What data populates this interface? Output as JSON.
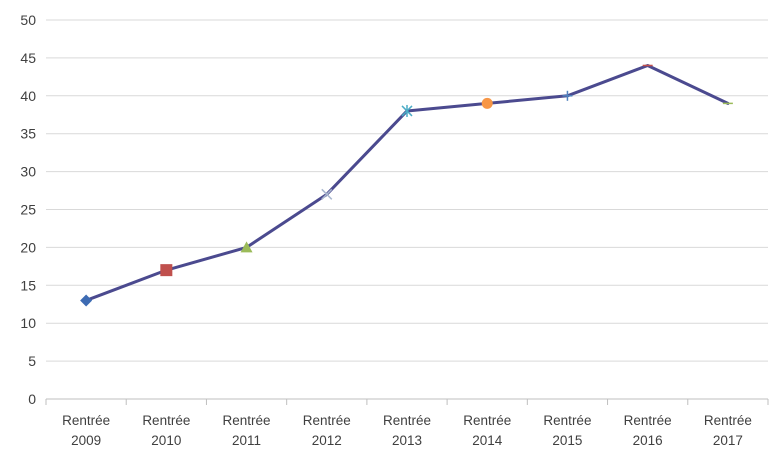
{
  "chart_data": {
    "type": "line",
    "title": "",
    "xlabel": "",
    "ylabel": "",
    "ylim": [
      0,
      50
    ],
    "yticks": [
      0,
      5,
      10,
      15,
      20,
      25,
      30,
      35,
      40,
      45,
      50
    ],
    "grid": true,
    "legend": "none",
    "categories": [
      [
        "Rentrée",
        "2009"
      ],
      [
        "Rentrée",
        "2010"
      ],
      [
        "Rentrée",
        "2011"
      ],
      [
        "Rentrée",
        "2012"
      ],
      [
        "Rentrée",
        "2013"
      ],
      [
        "Rentrée",
        "2014"
      ],
      [
        "Rentrée",
        "2015"
      ],
      [
        "Rentrée",
        "2016"
      ],
      [
        "Rentrée",
        "2017"
      ]
    ],
    "series": [
      {
        "line_color": "#4b4a8f",
        "values": [
          13,
          17,
          20,
          27,
          38,
          39,
          40,
          44,
          39
        ],
        "markers": [
          {
            "shape": "diamond",
            "color": "#3d6bb3"
          },
          {
            "shape": "square",
            "color": "#c0504d"
          },
          {
            "shape": "triangle",
            "color": "#9bbb59"
          },
          {
            "shape": "x",
            "color": "#a9b7cf"
          },
          {
            "shape": "star",
            "color": "#4bacc6"
          },
          {
            "shape": "circle",
            "color": "#f79646"
          },
          {
            "shape": "plus",
            "color": "#4f81bd"
          },
          {
            "shape": "dash",
            "color": "#c0504d"
          },
          {
            "shape": "dash",
            "color": "#9bbb59"
          }
        ]
      }
    ]
  },
  "colors": {
    "gridline": "#d9d9d9",
    "axis": "#bfbfbf",
    "text": "#404040"
  }
}
